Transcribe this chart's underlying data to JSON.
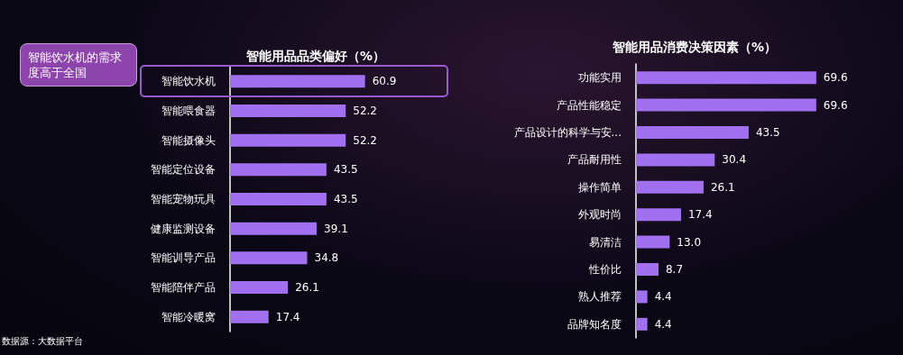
{
  "chart_data": [
    {
      "type": "bar",
      "orientation": "horizontal",
      "title": "智能用品品类偏好（%）",
      "categories": [
        "智能饮水机",
        "智能喂食器",
        "智能摄像头",
        "智能定位设备",
        "智能宠物玩具",
        "健康监测设备",
        "智能训导产品",
        "智能陪伴产品",
        "智能冷暖窝"
      ],
      "series": [
        {
          "color": "#a070f0",
          "values": [
            60.9,
            52.2,
            52.2,
            43.5,
            43.5,
            39.1,
            34.8,
            26.1,
            17.4
          ],
          "value_labels": [
            "60.9",
            "52.2",
            "52.2",
            "43.5",
            "43.5",
            "39.1",
            "34.8",
            "26.1",
            "17.4"
          ]
        }
      ],
      "annotations": [
        "智能饮水机的需求度高于全国",
        "数据源：大数据平台"
      ]
    },
    {
      "type": "bar",
      "orientation": "horizontal",
      "title": "智能用品消费决策因素（%）",
      "categories": [
        "功能实用",
        "产品性能稳定",
        "产品设计的科学与安...",
        "产品耐用性",
        "操作简单",
        "外观时尚",
        "易清洁",
        "性价比",
        "熟人推荐",
        "品牌知名度"
      ],
      "series": [
        {
          "color": "#a070f0",
          "values": [
            69.6,
            69.6,
            43.5,
            30.4,
            26.1,
            17.4,
            13.0,
            8.7,
            4.4,
            4.4
          ],
          "value_labels": [
            "69.6",
            "69.6",
            "43.5",
            "30.4",
            "26.1",
            "17.4",
            "13.0",
            "8.7",
            "4.4",
            "4.4"
          ]
        }
      ]
    }
  ]
}
